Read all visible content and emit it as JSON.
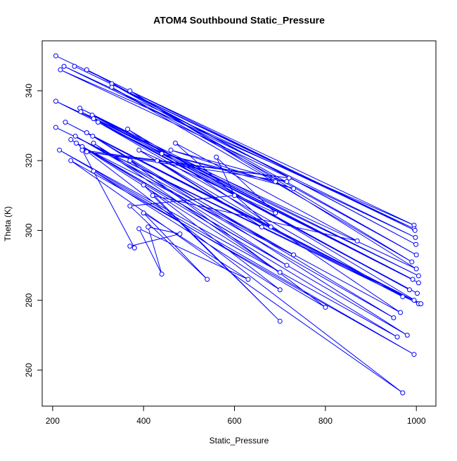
{
  "chart_data": {
    "type": "line",
    "title": "ATOM4 Southbound Static_Pressure",
    "x_label": "Static_Pressure",
    "y_label": "Theta (K)",
    "xlim": [
      177,
      1043
    ],
    "ylim": [
      249.7,
      354.3
    ],
    "xticks": [
      200,
      400,
      600,
      800,
      1000
    ],
    "yticks": [
      260,
      280,
      300,
      320,
      340
    ],
    "series": [
      {
        "name": "Theta",
        "color": "#0000ff",
        "x": [
          207,
          995,
          217,
          998,
          225,
          995,
          248,
          997,
          275,
          999,
          330,
          1000,
          330,
          990,
          370,
          1000,
          207,
          992,
          260,
          1005,
          262,
          1005,
          287,
          985,
          290,
          1002,
          300,
          970,
          228,
          995,
          207,
          1005,
          275,
          1010,
          365,
          965,
          250,
          950,
          288,
          980,
          240,
          958,
          215,
          995,
          240,
          970,
          252,
          700,
          290,
          715,
          265,
          730,
          370,
          800,
          290,
          700,
          400,
          700,
          420,
          870,
          470,
          680,
          430,
          660,
          390,
          690,
          560,
          600,
          370,
          540,
          400,
          630,
          390,
          440,
          410,
          480,
          370,
          380,
          265,
          720,
          275,
          715,
          460,
          730,
          440,
          690
        ],
        "values": [
          350,
          301.5,
          346,
          298,
          347,
          300.5,
          347,
          300,
          346,
          296,
          342,
          293,
          341,
          291,
          340,
          289,
          337,
          286,
          335,
          287,
          334,
          285,
          333,
          283,
          332,
          282,
          331,
          281,
          331,
          280,
          329.5,
          279,
          328,
          279,
          329,
          276.5,
          327,
          275,
          327,
          270,
          326,
          269.5,
          323,
          264.5,
          320,
          253.5,
          325,
          288,
          325,
          290,
          324,
          293,
          320,
          278,
          317,
          283,
          313,
          274,
          310,
          297,
          325,
          301,
          320,
          301,
          323,
          305,
          321,
          310,
          307,
          286,
          305,
          286,
          300.5,
          287.5,
          301,
          299,
          295.5,
          295,
          323,
          315,
          322.5,
          314,
          323,
          312,
          322,
          314
        ]
      }
    ]
  }
}
